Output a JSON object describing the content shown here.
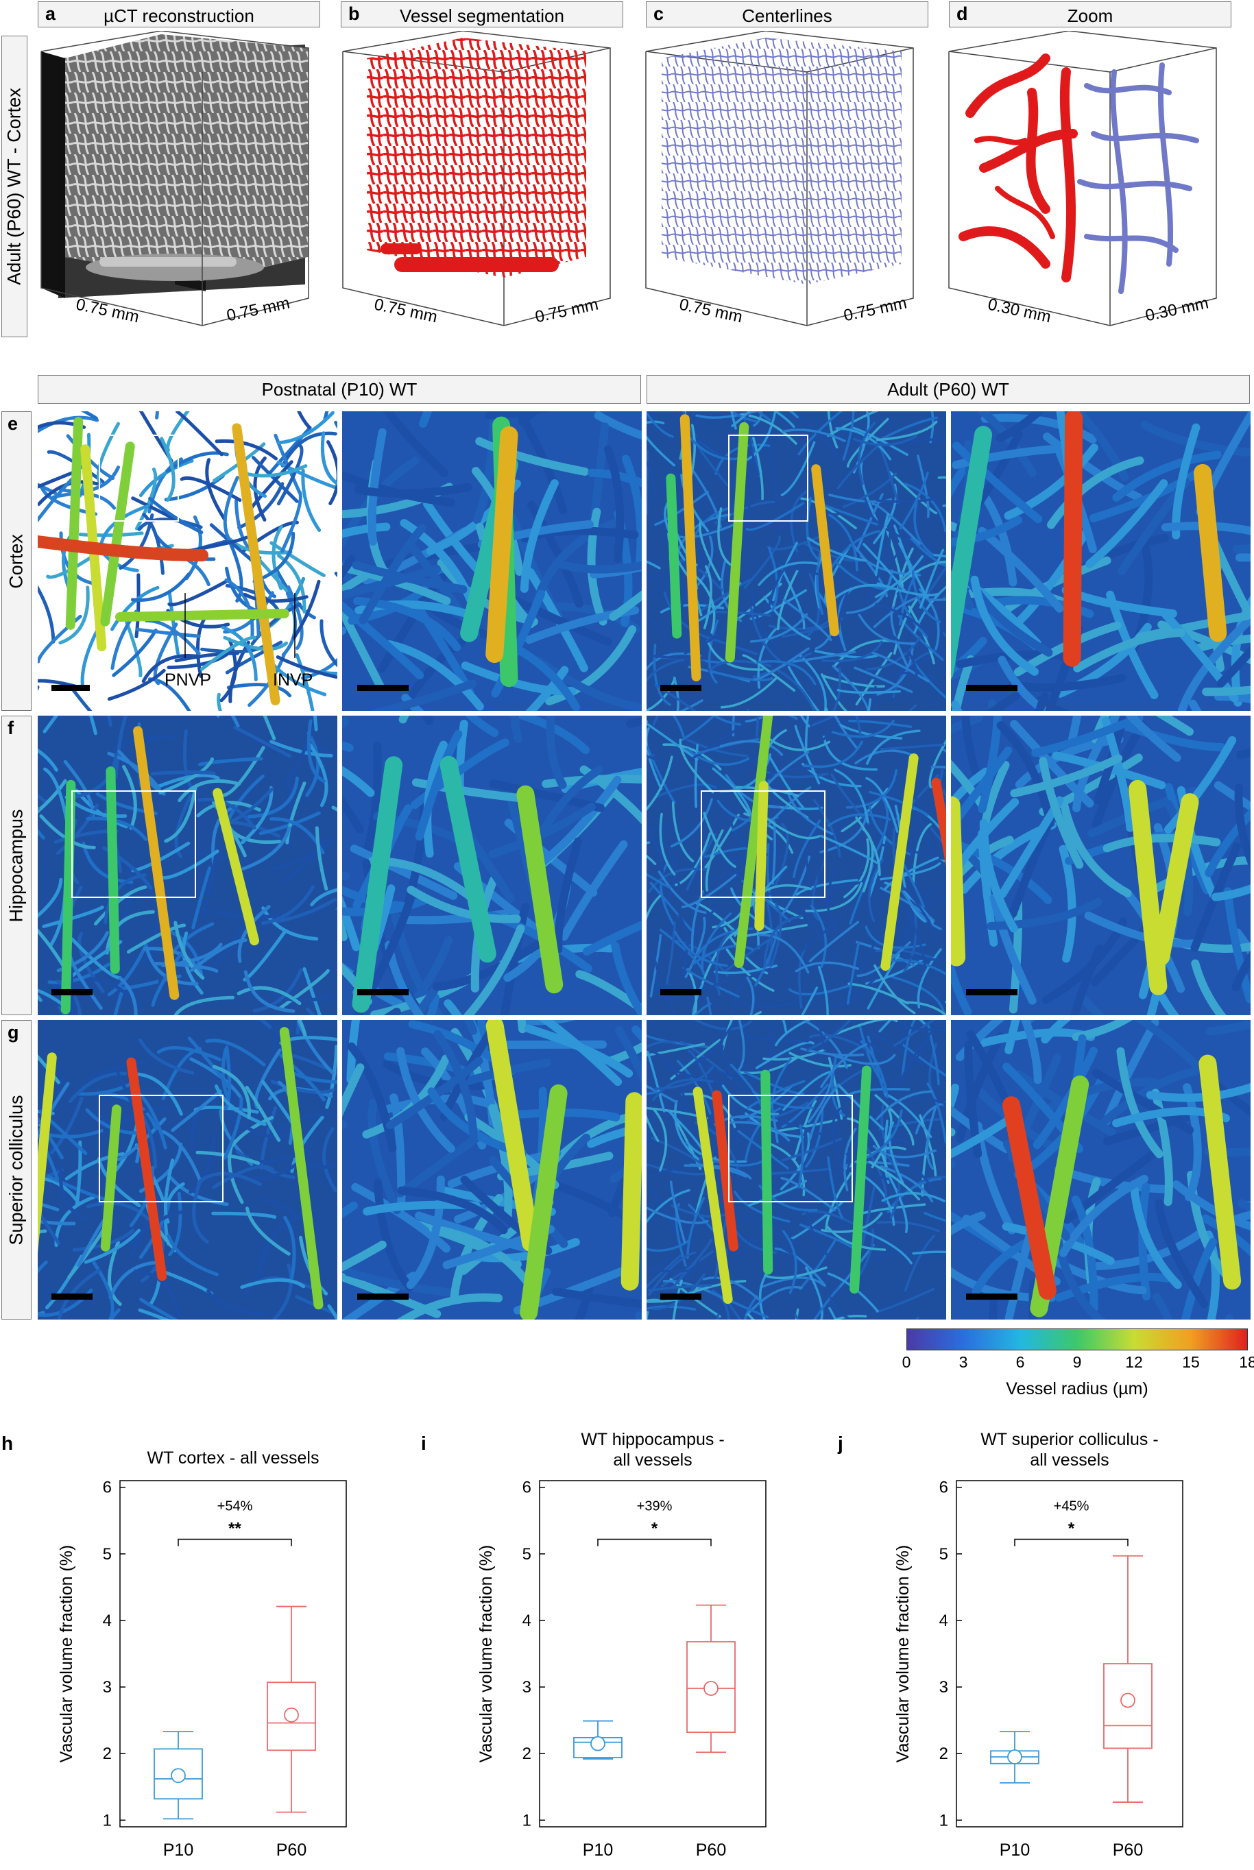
{
  "top_panels": [
    {
      "letter": "a",
      "title": "µCT reconstruction",
      "dim_left": "0.75 mm",
      "dim_right": "0.75 mm"
    },
    {
      "letter": "b",
      "title": "Vessel segmentation",
      "dim_left": "0.75 mm",
      "dim_right": "0.75 mm"
    },
    {
      "letter": "c",
      "title": "Centerlines",
      "dim_left": "0.75 mm",
      "dim_right": "0.75 mm"
    },
    {
      "letter": "d",
      "title": "Zoom",
      "dim_left": "0.30 mm",
      "dim_right": "0.30 mm"
    }
  ],
  "top_row_label": "Adult (P60) WT - Cortex",
  "group_headers": [
    "Postnatal (P10) WT",
    "Adult (P60) WT"
  ],
  "rows": [
    {
      "letter": "e",
      "label": "Cortex"
    },
    {
      "letter": "f",
      "label": "Hippocampus"
    },
    {
      "letter": "g",
      "label": "Superior colliculus"
    }
  ],
  "annotations": {
    "pnvp": "PNVP",
    "invp": "INVP"
  },
  "colorbar": {
    "ticks": [
      "0",
      "3",
      "6",
      "9",
      "12",
      "15",
      "18"
    ],
    "label": "Vessel radius (µm)",
    "colors": [
      "#4a3aa8",
      "#2a6ee0",
      "#22b8e0",
      "#3cc86a",
      "#c8dc32",
      "#f0a020",
      "#e02020"
    ]
  },
  "chart_data": [
    {
      "letter": "h",
      "type": "box",
      "title": "WT cortex - all vessels",
      "ylabel": "Vascular volume fraction (%)",
      "ylim": [
        0.9,
        6.1
      ],
      "yticks": [
        "1",
        "2",
        "3",
        "4",
        "5",
        "6"
      ],
      "categories": [
        "P10",
        "P60"
      ],
      "annotation": "+54%",
      "significance": "**",
      "boxes": [
        {
          "name": "P10",
          "color": "#3a9ad9",
          "whislo": 1.02,
          "q1": 1.32,
          "med": 1.62,
          "q3": 2.07,
          "whishi": 2.33,
          "mean": 1.67
        },
        {
          "name": "P60",
          "color": "#e86a6a",
          "whislo": 1.12,
          "q1": 2.05,
          "med": 2.46,
          "q3": 3.07,
          "whishi": 4.21,
          "mean": 2.58
        }
      ]
    },
    {
      "letter": "i",
      "type": "box",
      "title": "WT hippocampus -\nall vessels",
      "ylabel": "Vascular volume fraction (%)",
      "ylim": [
        0.9,
        6.1
      ],
      "yticks": [
        "1",
        "2",
        "3",
        "4",
        "5",
        "6"
      ],
      "categories": [
        "P10",
        "P60"
      ],
      "annotation": "+39%",
      "significance": "*",
      "boxes": [
        {
          "name": "P10",
          "color": "#3a9ad9",
          "whislo": 1.92,
          "q1": 1.94,
          "med": 2.17,
          "q3": 2.24,
          "whishi": 2.49,
          "mean": 2.15
        },
        {
          "name": "P60",
          "color": "#e86a6a",
          "whislo": 2.02,
          "q1": 2.32,
          "med": 2.98,
          "q3": 3.68,
          "whishi": 4.23,
          "mean": 2.98
        }
      ]
    },
    {
      "letter": "j",
      "type": "box",
      "title": "WT superior colliculus -\nall vessels",
      "ylabel": "Vascular volume fraction (%)",
      "ylim": [
        0.9,
        6.1
      ],
      "yticks": [
        "1",
        "2",
        "3",
        "4",
        "5",
        "6"
      ],
      "categories": [
        "P10",
        "P60"
      ],
      "annotation": "+45%",
      "significance": "*",
      "boxes": [
        {
          "name": "P10",
          "color": "#3a9ad9",
          "whislo": 1.56,
          "q1": 1.85,
          "med": 1.95,
          "q3": 2.04,
          "whishi": 2.33,
          "mean": 1.95
        },
        {
          "name": "P60",
          "color": "#e86a6a",
          "whislo": 1.27,
          "q1": 2.08,
          "med": 2.42,
          "q3": 3.35,
          "whishi": 4.97,
          "mean": 2.8
        }
      ]
    }
  ]
}
